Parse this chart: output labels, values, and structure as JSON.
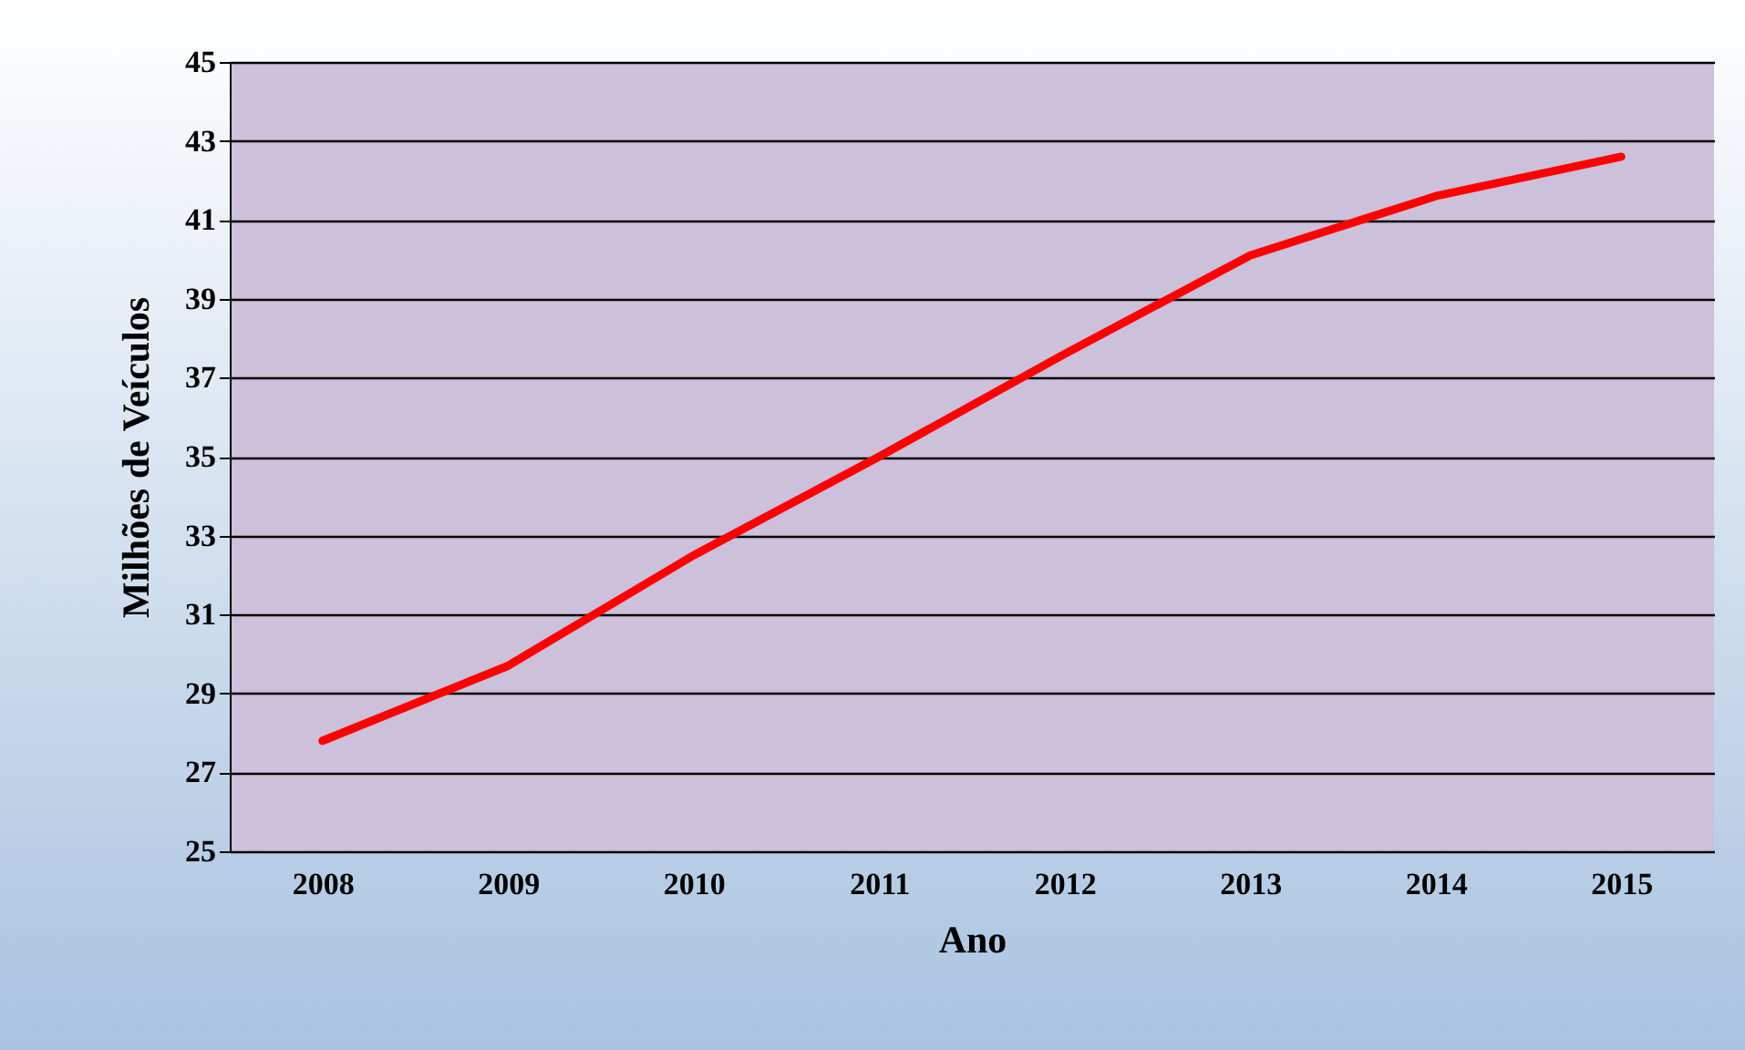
{
  "chart_data": {
    "type": "line",
    "xlabel": "Ano",
    "ylabel": "Milhões de Veículos",
    "categories": [
      "2008",
      "2009",
      "2010",
      "2011",
      "2012",
      "2013",
      "2014",
      "2015"
    ],
    "series": [
      {
        "color": "#ff0000",
        "values": [
          27.8,
          29.7,
          32.5,
          35.0,
          37.6,
          40.1,
          41.6,
          42.6
        ]
      }
    ],
    "ylim": [
      25,
      45
    ],
    "yticks": [
      25,
      27,
      29,
      31,
      33,
      35,
      37,
      39,
      41,
      43,
      45
    ],
    "grid": "y",
    "marker": "none",
    "line_style": "solid"
  }
}
